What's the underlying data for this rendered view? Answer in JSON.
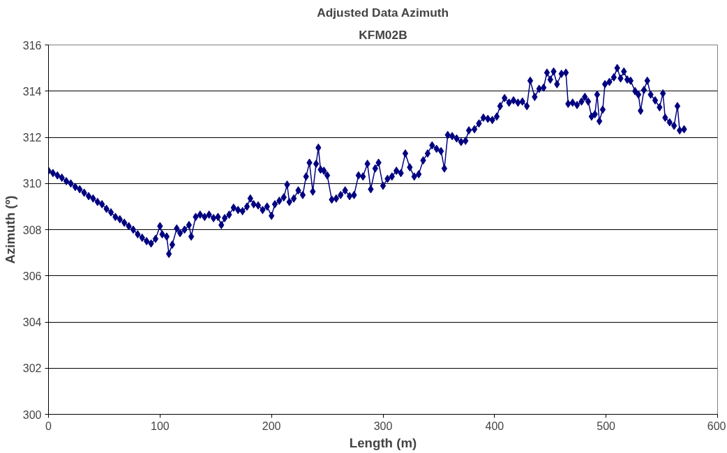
{
  "chart_data": {
    "type": "line",
    "title": "Adjusted Data Azimuth",
    "subtitle": "KFM02B",
    "xlabel": "Length (m)",
    "ylabel": "Azimuth (º)",
    "xlim": [
      0,
      600
    ],
    "xticks": [
      0,
      100,
      200,
      300,
      400,
      500,
      600
    ],
    "ylim": [
      300,
      316
    ],
    "yticks": [
      300,
      302,
      304,
      306,
      308,
      310,
      312,
      314,
      316
    ],
    "grid": "y",
    "marker": "diamond",
    "line_style": "solid",
    "series": [
      {
        "color": "#000080",
        "x": [
          0,
          4,
          8,
          12,
          16,
          20,
          24,
          28,
          32,
          36,
          40,
          44,
          48,
          52,
          56,
          60,
          64,
          68,
          72,
          76,
          80,
          84,
          88,
          92,
          96,
          100,
          102,
          106,
          108,
          111,
          115,
          118,
          122,
          126,
          128,
          132,
          136,
          140,
          144,
          148,
          152,
          155,
          158,
          162,
          166,
          170,
          174,
          178,
          181,
          184,
          188,
          192,
          196,
          200,
          203,
          207,
          211,
          214,
          216,
          220,
          224,
          228,
          231,
          234,
          237,
          240,
          242,
          244,
          247,
          250,
          254,
          258,
          262,
          266,
          270,
          274,
          278,
          282,
          286,
          289,
          293,
          296,
          300,
          304,
          308,
          312,
          316,
          320,
          324,
          328,
          332,
          336,
          340,
          344,
          348,
          352,
          355,
          358,
          362,
          366,
          370,
          374,
          377,
          382,
          386,
          390,
          394,
          398,
          402,
          405,
          409,
          413,
          417,
          421,
          425,
          429,
          432,
          436,
          440,
          444,
          447,
          450,
          453,
          456,
          460,
          464,
          466,
          470,
          474,
          478,
          481,
          484,
          487,
          490,
          492,
          494,
          497,
          499,
          503,
          507,
          510,
          513,
          516,
          519,
          522,
          526,
          529,
          531,
          534,
          537,
          540,
          544,
          548,
          551,
          553,
          557,
          561,
          564,
          566,
          570
        ],
        "values": [
          310.55,
          310.45,
          310.35,
          310.25,
          310.1,
          310.0,
          309.85,
          309.75,
          309.6,
          309.45,
          309.35,
          309.2,
          309.1,
          308.9,
          308.75,
          308.55,
          308.45,
          308.3,
          308.15,
          308.0,
          307.8,
          307.65,
          307.5,
          307.4,
          307.6,
          308.15,
          307.8,
          307.7,
          306.95,
          307.35,
          308.05,
          307.85,
          308.0,
          308.2,
          307.7,
          308.55,
          308.65,
          308.55,
          308.65,
          308.5,
          308.55,
          308.2,
          308.5,
          308.65,
          308.95,
          308.85,
          308.8,
          309.0,
          309.35,
          309.1,
          309.05,
          308.85,
          309.0,
          308.6,
          309.1,
          309.25,
          309.4,
          309.95,
          309.2,
          309.35,
          309.7,
          309.5,
          310.3,
          310.9,
          309.65,
          310.85,
          311.55,
          310.6,
          310.55,
          310.35,
          309.3,
          309.35,
          309.5,
          309.7,
          309.45,
          309.5,
          310.35,
          310.3,
          310.85,
          309.75,
          310.65,
          310.9,
          309.9,
          310.2,
          310.3,
          310.55,
          310.45,
          311.3,
          310.7,
          310.3,
          310.4,
          311.0,
          311.3,
          311.65,
          311.5,
          311.4,
          310.65,
          312.1,
          312.05,
          311.95,
          311.8,
          311.85,
          312.3,
          312.35,
          312.6,
          312.85,
          312.8,
          312.75,
          312.9,
          313.35,
          313.7,
          313.5,
          313.6,
          313.5,
          313.55,
          313.35,
          314.45,
          313.75,
          314.1,
          314.15,
          314.8,
          314.5,
          314.85,
          314.3,
          314.75,
          314.8,
          313.45,
          313.5,
          313.4,
          313.55,
          313.75,
          313.55,
          312.9,
          313.0,
          313.85,
          312.7,
          313.2,
          314.3,
          314.4,
          314.6,
          315.0,
          314.55,
          314.85,
          314.5,
          314.45,
          314.0,
          313.85,
          313.15,
          314.05,
          314.45,
          313.85,
          313.6,
          313.3,
          313.9,
          312.85,
          312.65,
          312.5,
          313.35,
          312.3,
          312.35
        ]
      }
    ]
  }
}
